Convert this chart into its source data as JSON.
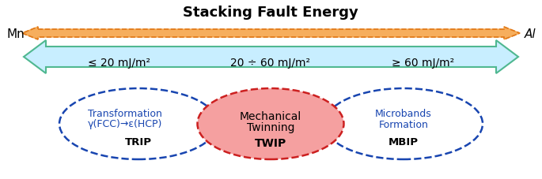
{
  "title": "Stacking Fault Energy",
  "title_fontsize": 13,
  "title_fontweight": "bold",
  "mn_label": "Mn",
  "al_label": "Al",
  "range1": "≤ 20 mJ/m²",
  "range2": "20 ÷ 60 mJ/m²",
  "range3": "≥ 60 mJ/m²",
  "trip_line1": "Transformation",
  "trip_line2": "γ(FCC)→ε(HCP)",
  "trip_label": "TRIP",
  "twip_line1": "Mechanical",
  "twip_line2": "Twinning",
  "twip_label": "TWIP",
  "mbip_line1": "Microbands",
  "mbip_line2": "Formation",
  "mbip_label": "MBIP",
  "orange_fill_color": "#F5A040",
  "orange_border_color": "#E07818",
  "cyan_fill_color": "#C8EEFF",
  "cyan_edge_color": "#50B890",
  "blue_dashed_color": "#1845B0",
  "red_fill_color": "#F5A0A0",
  "red_edge_color": "#CC2020",
  "background": "#FFFFFF",
  "range_fontsize": 10,
  "trip_text_color": "#1845B0",
  "twip_text_color": "#000000"
}
